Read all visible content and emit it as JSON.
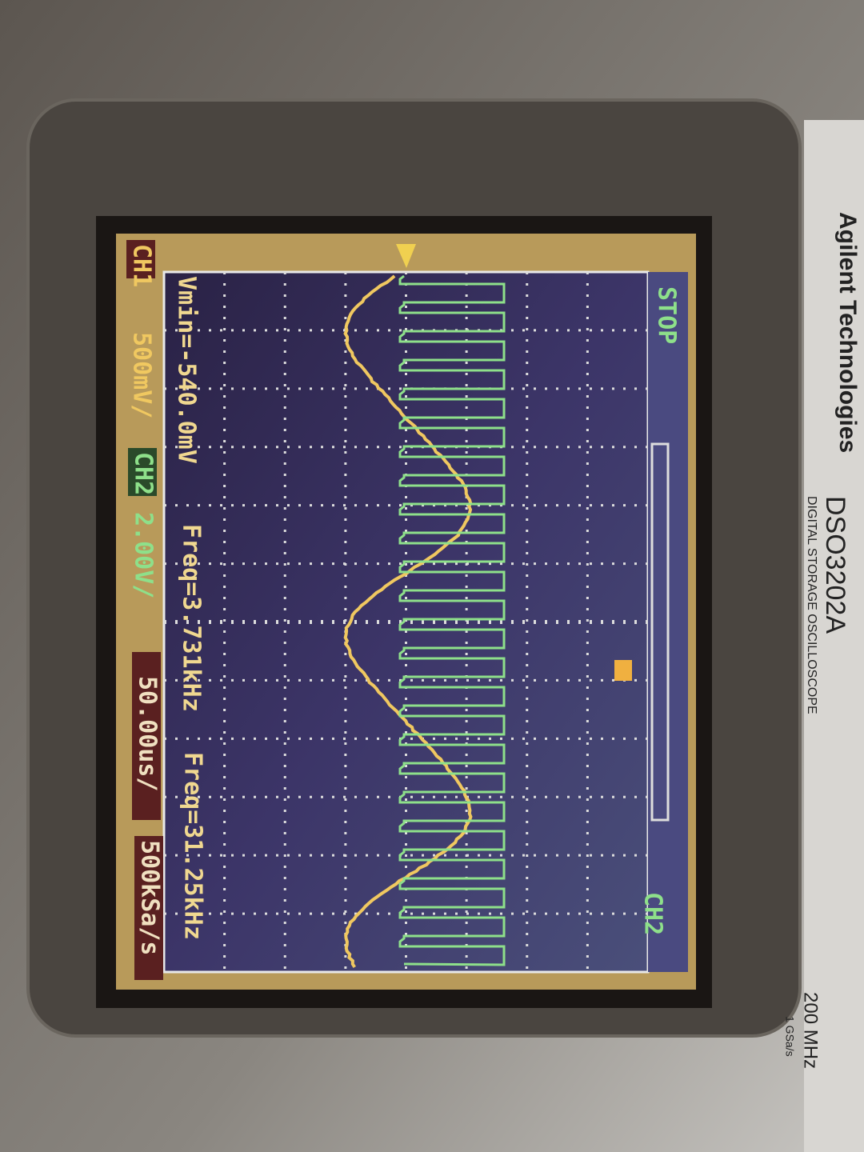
{
  "brand": {
    "maker": "Agilent Technologies",
    "model": "DSO3202A",
    "description": "DIGITAL STORAGE OSCILLOSCOPE",
    "bandwidth": "200 MHz",
    "sample_rate": "1 GSa/s"
  },
  "screen": {
    "status": {
      "ch1": "CH1",
      "ch1_scale": "500mV/",
      "ch2": "CH2",
      "ch2_scale": "2.00V/",
      "timebase": "50.00us/",
      "sampling": "500kSa/s"
    },
    "measurements": {
      "vmin": "Vmin=-540.0mV",
      "freq1": "Freq=3.731kHz",
      "freq2": "Freq=31.25kHz"
    },
    "run_state": "STOP",
    "trigger_source": "CH2"
  }
}
